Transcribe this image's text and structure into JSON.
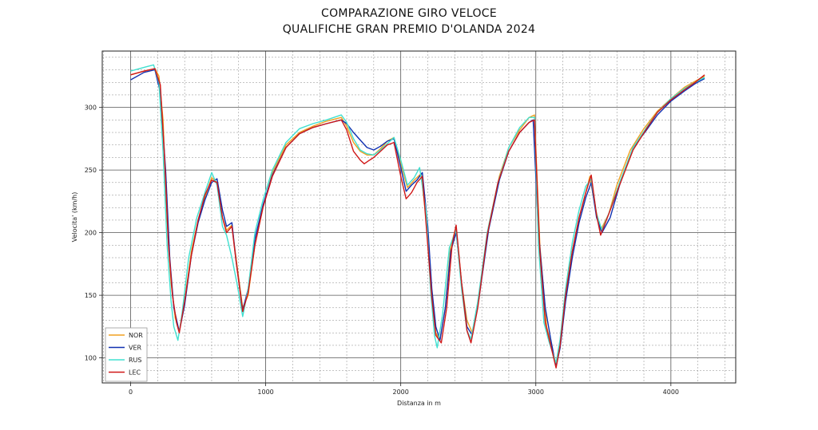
{
  "chart_data": {
    "type": "line",
    "title": "COMPARAZIONE GIRO VELOCE",
    "subtitle": "QUALIFICHE GRAN PREMIO D'OLANDA 2024",
    "xlabel": "Distanza in m",
    "ylabel": "Velocita' (km/h)",
    "xlim": [
      -210,
      4480
    ],
    "ylim": [
      80,
      345
    ],
    "xticks": [
      0,
      1000,
      2000,
      3000,
      4000
    ],
    "yticks": [
      100,
      150,
      200,
      250,
      300
    ],
    "grid": true,
    "legend_position": "bottom-left",
    "series": [
      {
        "name": "NOR",
        "color": "#f0a020",
        "points": [
          [
            0,
            326
          ],
          [
            100,
            329
          ],
          [
            180,
            331
          ],
          [
            210,
            325
          ],
          [
            240,
            290
          ],
          [
            270,
            210
          ],
          [
            300,
            160
          ],
          [
            330,
            132
          ],
          [
            360,
            121
          ],
          [
            400,
            145
          ],
          [
            450,
            185
          ],
          [
            500,
            210
          ],
          [
            550,
            228
          ],
          [
            600,
            244
          ],
          [
            640,
            240
          ],
          [
            680,
            212
          ],
          [
            710,
            202
          ],
          [
            750,
            206
          ],
          [
            780,
            180
          ],
          [
            830,
            140
          ],
          [
            870,
            150
          ],
          [
            920,
            190
          ],
          [
            980,
            220
          ],
          [
            1050,
            248
          ],
          [
            1150,
            270
          ],
          [
            1250,
            280
          ],
          [
            1350,
            285
          ],
          [
            1450,
            289
          ],
          [
            1560,
            292
          ],
          [
            1600,
            285
          ],
          [
            1650,
            272
          ],
          [
            1700,
            265
          ],
          [
            1750,
            262
          ],
          [
            1800,
            262
          ],
          [
            1850,
            267
          ],
          [
            1900,
            273
          ],
          [
            1950,
            276
          ],
          [
            2000,
            255
          ],
          [
            2050,
            236
          ],
          [
            2100,
            242
          ],
          [
            2150,
            247
          ],
          [
            2200,
            200
          ],
          [
            2230,
            150
          ],
          [
            2260,
            120
          ],
          [
            2290,
            114
          ],
          [
            2330,
            140
          ],
          [
            2370,
            190
          ],
          [
            2410,
            204
          ],
          [
            2450,
            160
          ],
          [
            2490,
            130
          ],
          [
            2530,
            120
          ],
          [
            2580,
            150
          ],
          [
            2650,
            205
          ],
          [
            2730,
            245
          ],
          [
            2800,
            268
          ],
          [
            2880,
            282
          ],
          [
            2950,
            292
          ],
          [
            2990,
            294
          ],
          [
            3030,
            190
          ],
          [
            3080,
            125
          ],
          [
            3120,
            108
          ],
          [
            3150,
            94
          ],
          [
            3180,
            110
          ],
          [
            3220,
            150
          ],
          [
            3270,
            185
          ],
          [
            3320,
            212
          ],
          [
            3370,
            232
          ],
          [
            3400,
            245
          ],
          [
            3440,
            220
          ],
          [
            3480,
            202
          ],
          [
            3540,
            215
          ],
          [
            3600,
            238
          ],
          [
            3700,
            266
          ],
          [
            3800,
            283
          ],
          [
            3900,
            297
          ],
          [
            4000,
            307
          ],
          [
            4100,
            316
          ],
          [
            4180,
            321
          ],
          [
            4250,
            325
          ]
        ]
      },
      {
        "name": "VER",
        "color": "#1030b0",
        "points": [
          [
            0,
            322
          ],
          [
            100,
            328
          ],
          [
            180,
            330
          ],
          [
            220,
            312
          ],
          [
            260,
            248
          ],
          [
            290,
            180
          ],
          [
            320,
            140
          ],
          [
            360,
            121
          ],
          [
            400,
            142
          ],
          [
            450,
            182
          ],
          [
            500,
            208
          ],
          [
            550,
            226
          ],
          [
            600,
            240
          ],
          [
            640,
            243
          ],
          [
            680,
            218
          ],
          [
            710,
            205
          ],
          [
            750,
            208
          ],
          [
            780,
            178
          ],
          [
            830,
            138
          ],
          [
            870,
            155
          ],
          [
            920,
            195
          ],
          [
            980,
            222
          ],
          [
            1050,
            246
          ],
          [
            1150,
            268
          ],
          [
            1250,
            279
          ],
          [
            1350,
            284
          ],
          [
            1450,
            287
          ],
          [
            1560,
            290
          ],
          [
            1600,
            287
          ],
          [
            1650,
            280
          ],
          [
            1700,
            274
          ],
          [
            1750,
            268
          ],
          [
            1800,
            266
          ],
          [
            1850,
            269
          ],
          [
            1900,
            273
          ],
          [
            1950,
            275
          ],
          [
            2000,
            252
          ],
          [
            2040,
            233
          ],
          [
            2080,
            238
          ],
          [
            2120,
            242
          ],
          [
            2160,
            248
          ],
          [
            2200,
            205
          ],
          [
            2230,
            155
          ],
          [
            2260,
            125
          ],
          [
            2290,
            114
          ],
          [
            2330,
            140
          ],
          [
            2370,
            185
          ],
          [
            2410,
            200
          ],
          [
            2450,
            160
          ],
          [
            2490,
            125
          ],
          [
            2530,
            118
          ],
          [
            2580,
            148
          ],
          [
            2650,
            202
          ],
          [
            2730,
            242
          ],
          [
            2800,
            265
          ],
          [
            2880,
            280
          ],
          [
            2950,
            288
          ],
          [
            2980,
            290
          ],
          [
            3020,
            200
          ],
          [
            3070,
            140
          ],
          [
            3110,
            115
          ],
          [
            3150,
            93
          ],
          [
            3180,
            108
          ],
          [
            3220,
            145
          ],
          [
            3270,
            180
          ],
          [
            3320,
            208
          ],
          [
            3370,
            228
          ],
          [
            3410,
            240
          ],
          [
            3450,
            212
          ],
          [
            3490,
            200
          ],
          [
            3550,
            212
          ],
          [
            3620,
            238
          ],
          [
            3720,
            268
          ],
          [
            3820,
            282
          ],
          [
            3900,
            294
          ],
          [
            4000,
            305
          ],
          [
            4100,
            313
          ],
          [
            4180,
            319
          ],
          [
            4250,
            323
          ]
        ]
      },
      {
        "name": "RUS",
        "color": "#40e0d0",
        "points": [
          [
            0,
            329
          ],
          [
            100,
            332
          ],
          [
            170,
            334
          ],
          [
            210,
            320
          ],
          [
            240,
            265
          ],
          [
            270,
            190
          ],
          [
            300,
            145
          ],
          [
            320,
            125
          ],
          [
            350,
            114
          ],
          [
            380,
            135
          ],
          [
            430,
            180
          ],
          [
            490,
            212
          ],
          [
            550,
            232
          ],
          [
            600,
            248
          ],
          [
            640,
            238
          ],
          [
            680,
            205
          ],
          [
            710,
            198
          ],
          [
            750,
            180
          ],
          [
            790,
            158
          ],
          [
            830,
            133
          ],
          [
            870,
            155
          ],
          [
            920,
            200
          ],
          [
            980,
            226
          ],
          [
            1050,
            250
          ],
          [
            1150,
            272
          ],
          [
            1250,
            283
          ],
          [
            1350,
            287
          ],
          [
            1450,
            290
          ],
          [
            1560,
            294
          ],
          [
            1600,
            288
          ],
          [
            1650,
            275
          ],
          [
            1700,
            266
          ],
          [
            1750,
            263
          ],
          [
            1800,
            262
          ],
          [
            1850,
            266
          ],
          [
            1900,
            271
          ],
          [
            1950,
            276
          ],
          [
            2000,
            258
          ],
          [
            2050,
            238
          ],
          [
            2100,
            244
          ],
          [
            2140,
            252
          ],
          [
            2190,
            215
          ],
          [
            2220,
            155
          ],
          [
            2250,
            118
          ],
          [
            2270,
            108
          ],
          [
            2310,
            135
          ],
          [
            2360,
            188
          ],
          [
            2410,
            202
          ],
          [
            2450,
            155
          ],
          [
            2490,
            122
          ],
          [
            2520,
            115
          ],
          [
            2570,
            145
          ],
          [
            2640,
            200
          ],
          [
            2720,
            240
          ],
          [
            2800,
            268
          ],
          [
            2880,
            284
          ],
          [
            2950,
            292
          ],
          [
            2990,
            292
          ],
          [
            3020,
            190
          ],
          [
            3060,
            128
          ],
          [
            3100,
            112
          ],
          [
            3150,
            96
          ],
          [
            3180,
            115
          ],
          [
            3220,
            155
          ],
          [
            3270,
            192
          ],
          [
            3320,
            218
          ],
          [
            3370,
            237
          ],
          [
            3410,
            243
          ],
          [
            3450,
            215
          ],
          [
            3490,
            202
          ],
          [
            3550,
            218
          ],
          [
            3620,
            240
          ],
          [
            3720,
            268
          ],
          [
            3820,
            284
          ],
          [
            3900,
            296
          ],
          [
            4000,
            307
          ],
          [
            4100,
            315
          ],
          [
            4180,
            320
          ],
          [
            4250,
            324
          ]
        ]
      },
      {
        "name": "LEC",
        "color": "#d01818",
        "points": [
          [
            0,
            326
          ],
          [
            100,
            329
          ],
          [
            180,
            331
          ],
          [
            220,
            318
          ],
          [
            250,
            262
          ],
          [
            280,
            190
          ],
          [
            310,
            150
          ],
          [
            340,
            128
          ],
          [
            360,
            120
          ],
          [
            400,
            145
          ],
          [
            450,
            182
          ],
          [
            500,
            210
          ],
          [
            550,
            230
          ],
          [
            600,
            242
          ],
          [
            640,
            240
          ],
          [
            680,
            212
          ],
          [
            710,
            200
          ],
          [
            750,
            205
          ],
          [
            780,
            178
          ],
          [
            830,
            137
          ],
          [
            870,
            152
          ],
          [
            920,
            190
          ],
          [
            980,
            220
          ],
          [
            1050,
            245
          ],
          [
            1150,
            268
          ],
          [
            1250,
            279
          ],
          [
            1350,
            284
          ],
          [
            1450,
            287
          ],
          [
            1560,
            290
          ],
          [
            1600,
            282
          ],
          [
            1650,
            265
          ],
          [
            1700,
            258
          ],
          [
            1730,
            255
          ],
          [
            1770,
            258
          ],
          [
            1800,
            260
          ],
          [
            1850,
            265
          ],
          [
            1900,
            270
          ],
          [
            1950,
            272
          ],
          [
            2000,
            245
          ],
          [
            2040,
            227
          ],
          [
            2080,
            232
          ],
          [
            2120,
            240
          ],
          [
            2160,
            245
          ],
          [
            2200,
            190
          ],
          [
            2230,
            148
          ],
          [
            2260,
            118
          ],
          [
            2300,
            112
          ],
          [
            2340,
            140
          ],
          [
            2380,
            190
          ],
          [
            2410,
            206
          ],
          [
            2450,
            160
          ],
          [
            2490,
            122
          ],
          [
            2520,
            112
          ],
          [
            2570,
            140
          ],
          [
            2640,
            198
          ],
          [
            2720,
            240
          ],
          [
            2800,
            265
          ],
          [
            2880,
            280
          ],
          [
            2950,
            288
          ],
          [
            2990,
            290
          ],
          [
            3030,
            185
          ],
          [
            3070,
            128
          ],
          [
            3110,
            110
          ],
          [
            3150,
            92
          ],
          [
            3180,
            110
          ],
          [
            3220,
            150
          ],
          [
            3270,
            185
          ],
          [
            3320,
            212
          ],
          [
            3370,
            232
          ],
          [
            3410,
            246
          ],
          [
            3450,
            214
          ],
          [
            3480,
            198
          ],
          [
            3540,
            215
          ],
          [
            3620,
            238
          ],
          [
            3720,
            266
          ],
          [
            3820,
            283
          ],
          [
            3900,
            296
          ],
          [
            4000,
            306
          ],
          [
            4100,
            314
          ],
          [
            4180,
            320
          ],
          [
            4250,
            326
          ]
        ]
      }
    ]
  }
}
